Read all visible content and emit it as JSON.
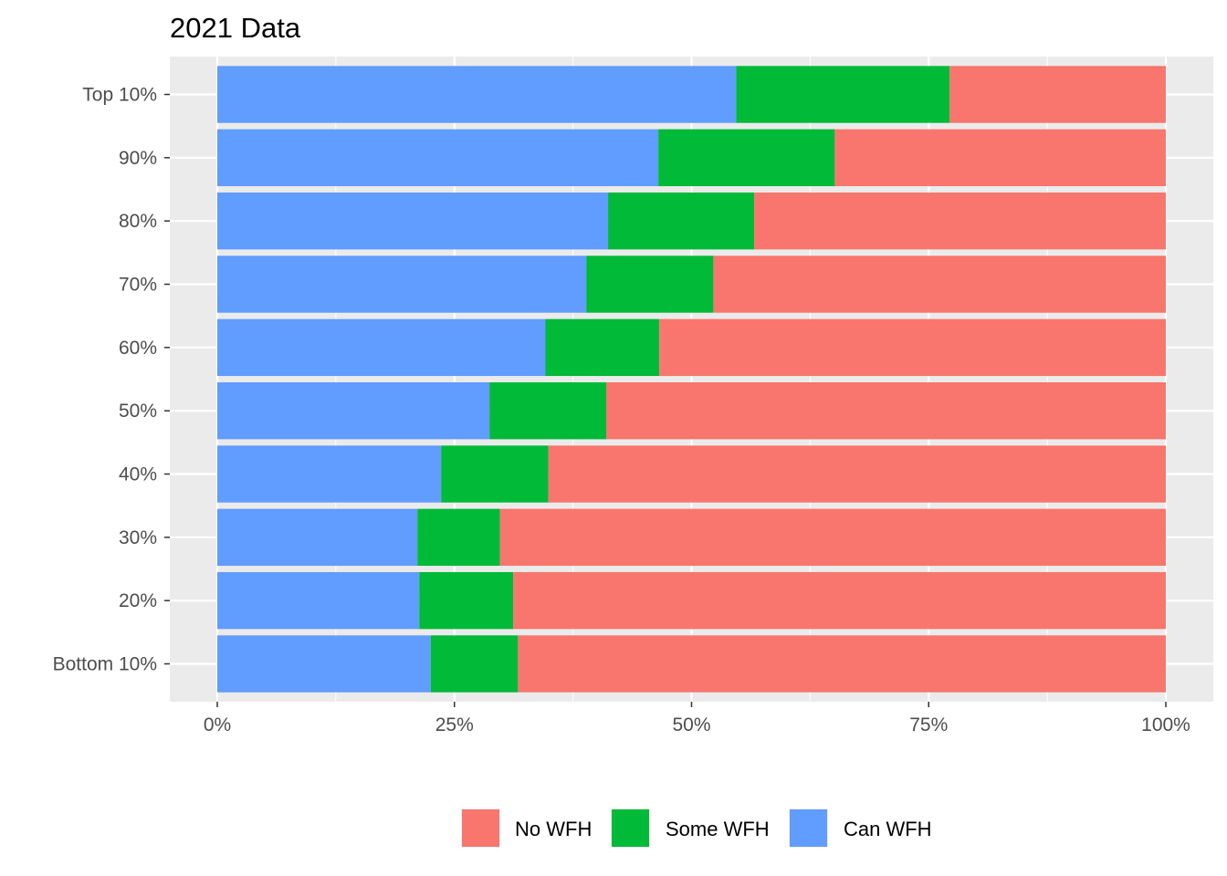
{
  "chart_data": {
    "type": "bar",
    "orientation": "horizontal",
    "stacked": true,
    "title": "2021 Data",
    "xlabel": "",
    "ylabel": "",
    "categories": [
      "Bottom 10%",
      "20%",
      "30%",
      "40%",
      "50%",
      "60%",
      "70%",
      "80%",
      "90%",
      "Top 10%"
    ],
    "series": [
      {
        "name": "Can WFH",
        "color": "#619CFF",
        "values": [
          22.5,
          21.3,
          21.1,
          23.6,
          28.7,
          34.6,
          38.9,
          41.2,
          46.5,
          54.7
        ]
      },
      {
        "name": "Some WFH",
        "color": "#00BA38",
        "values": [
          9.2,
          9.9,
          8.7,
          11.3,
          12.3,
          12.0,
          13.4,
          15.4,
          18.6,
          22.5
        ]
      },
      {
        "name": "No WFH",
        "color": "#F8766D",
        "values": [
          68.3,
          68.8,
          70.2,
          65.1,
          59.0,
          53.4,
          47.7,
          43.4,
          34.9,
          22.8
        ]
      }
    ],
    "xlim": [
      0,
      100
    ],
    "xticks": [
      "0%",
      "25%",
      "50%",
      "75%",
      "100%"
    ],
    "legend": {
      "position": "bottom",
      "entries": [
        {
          "label": "No WFH",
          "color": "#F8766D"
        },
        {
          "label": "Some WFH",
          "color": "#00BA38"
        },
        {
          "label": "Can WFH",
          "color": "#619CFF"
        }
      ]
    },
    "grid": true,
    "panel_background": "#EBEBEB"
  }
}
